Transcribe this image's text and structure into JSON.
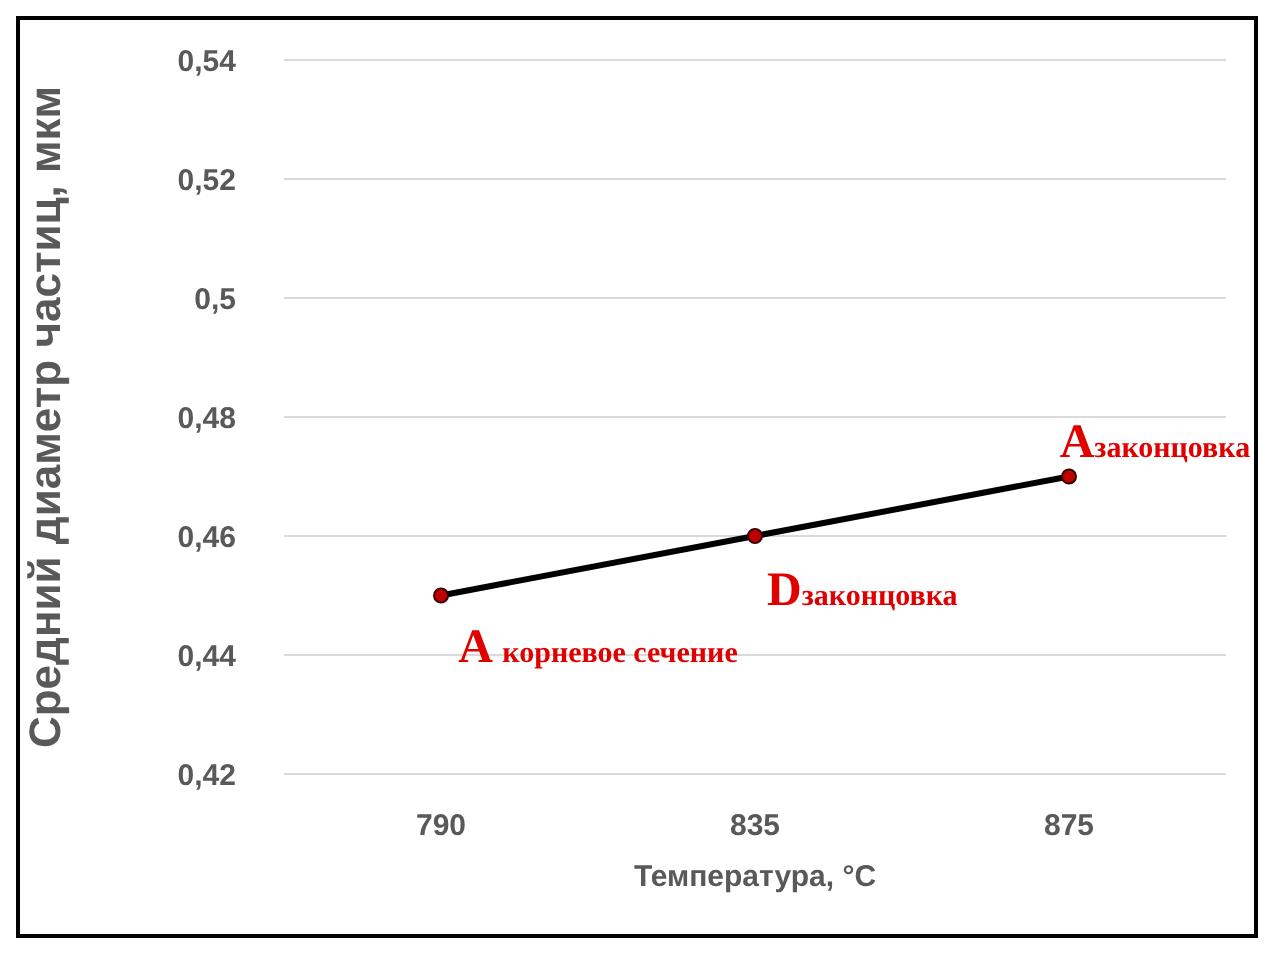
{
  "chart_data": {
    "type": "line",
    "xlabel": "Температура, °C",
    "ylabel": "Средний диаметр частиц, мкм",
    "categories": [
      "790",
      "835",
      "875"
    ],
    "series": [
      {
        "color": "#000000",
        "values": [
          0.45,
          0.46,
          0.47
        ]
      }
    ],
    "ylim": [
      0.42,
      0.54
    ],
    "yticks": [
      {
        "value": 0.42,
        "label": "0,42"
      },
      {
        "value": 0.44,
        "label": "0,44"
      },
      {
        "value": 0.46,
        "label": "0,46"
      },
      {
        "value": 0.48,
        "label": "0,48"
      },
      {
        "value": 0.5,
        "label": "0,5"
      },
      {
        "value": 0.52,
        "label": "0,52"
      },
      {
        "value": 0.54,
        "label": "0,54"
      }
    ],
    "grid": "y",
    "marker": "circle",
    "annotations": [
      {
        "text": "A $_{корневое сечение}$",
        "x": "790",
        "y": 0.45
      },
      {
        "text": "D$_{законцовка}$",
        "x": "835",
        "y": 0.46
      },
      {
        "text": "A$_{законцовка}$",
        "x": "875",
        "y": 0.47
      }
    ]
  }
}
